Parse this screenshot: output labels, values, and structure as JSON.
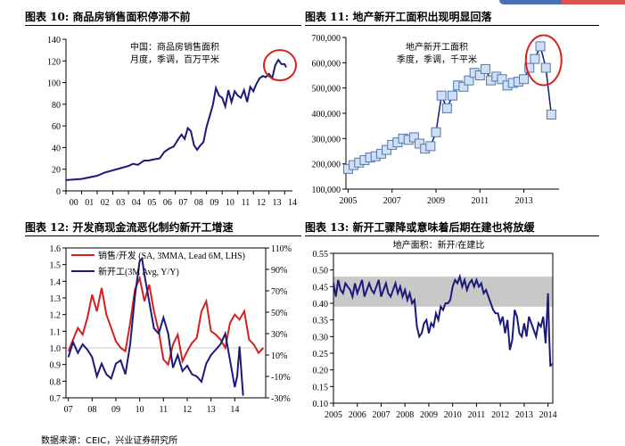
{
  "panels": [
    {
      "title": "图表 10:  商品房销售面积停滞不前"
    },
    {
      "title": "图表 11:  地产新开工面积出现明显回落"
    },
    {
      "title": "图表 12:  开发商现金流恶化制约新开工增速"
    },
    {
      "title": "图表 13:  新开工骤降或意味着后期在建也将放缓"
    }
  ],
  "source": "数据来源：CEIC，兴业证券研究所",
  "colors": {
    "navy": "#1a1a7a",
    "red": "#d62020",
    "light_blue_fill": "#cfe0f5",
    "grey_band": "#c8c8c8"
  },
  "chart_data": [
    {
      "type": "line",
      "annotation": [
        "中国：商品房销售面积",
        "月度，季调，百万平米"
      ],
      "x_ticks": [
        "00",
        "01",
        "02",
        "03",
        "04",
        "05",
        "06",
        "07",
        "08",
        "09",
        "10",
        "11",
        "12",
        "13",
        "14"
      ],
      "ylim": [
        0,
        140
      ],
      "y_ticks": [
        0,
        20,
        40,
        60,
        80,
        100,
        120,
        140
      ],
      "x": [
        0.0,
        1.0,
        2.0,
        2.5,
        3.0,
        3.5,
        4.0,
        4.3,
        4.6,
        4.9,
        5.0,
        5.3,
        5.6,
        6.0,
        6.3,
        6.6,
        6.9,
        7.2,
        7.4,
        7.6,
        7.8,
        8.0,
        8.2,
        8.4,
        8.6,
        8.8,
        9.0,
        9.2,
        9.4,
        9.6,
        9.8,
        10.0,
        10.2,
        10.4,
        10.6,
        10.8,
        11.0,
        11.2,
        11.4,
        11.6,
        11.8,
        12.0,
        12.2,
        12.4,
        12.6,
        12.8,
        13.0,
        13.2,
        13.4,
        13.6,
        13.8,
        14.0,
        14.1
      ],
      "y": [
        10,
        11,
        14,
        17,
        19,
        21,
        23,
        25,
        24,
        27,
        28,
        28,
        29,
        30,
        36,
        39,
        41,
        48,
        52,
        48,
        58,
        55,
        42,
        38,
        42,
        45,
        59,
        69,
        79,
        95,
        88,
        86,
        78,
        93,
        82,
        92,
        88,
        86,
        93,
        82,
        96,
        92,
        99,
        104,
        106,
        105,
        108,
        104,
        116,
        121,
        117,
        117,
        114
      ],
      "highlight_circle_x": 13.7
    },
    {
      "type": "line",
      "annotation": [
        "地产新开工面积",
        "季度，季调，千平米"
      ],
      "x_ticks": [
        "2005",
        "2007",
        "2009",
        "2011",
        "2013"
      ],
      "x_tick_values": [
        2005,
        2007,
        2009,
        2011,
        2013
      ],
      "ylim": [
        100000,
        700000
      ],
      "y_ticks": [
        "100,000",
        "200,000",
        "300,000",
        "400,000",
        "500,000",
        "600,000",
        "700,000"
      ],
      "y_tick_values": [
        100000,
        200000,
        300000,
        400000,
        500000,
        600000,
        700000
      ],
      "x": [
        2005.0,
        2005.25,
        2005.5,
        2005.75,
        2006.0,
        2006.25,
        2006.5,
        2006.75,
        2007.0,
        2007.25,
        2007.5,
        2007.75,
        2008.0,
        2008.25,
        2008.5,
        2008.75,
        2009.0,
        2009.25,
        2009.5,
        2009.75,
        2010.0,
        2010.25,
        2010.5,
        2010.75,
        2011.0,
        2011.25,
        2011.5,
        2011.75,
        2012.0,
        2012.25,
        2012.5,
        2012.75,
        2013.0,
        2013.25,
        2013.5,
        2013.75,
        2014.0,
        2014.25
      ],
      "y": [
        180000,
        195000,
        205000,
        215000,
        225000,
        230000,
        240000,
        255000,
        275000,
        285000,
        300000,
        295000,
        305000,
        280000,
        260000,
        270000,
        325000,
        470000,
        420000,
        470000,
        510000,
        505000,
        530000,
        560000,
        550000,
        575000,
        530000,
        545000,
        535000,
        510000,
        520000,
        525000,
        535000,
        580000,
        615000,
        665000,
        580000,
        395000
      ],
      "highlight_circle_x": 2013.9
    },
    {
      "type": "line",
      "legend": [
        "销售/开发 (SA, 3MMA, Lead 6M, LHS)",
        "新开工(3M Avg, Y/Y)"
      ],
      "x_ticks": [
        "07",
        "08",
        "09",
        "10",
        "11",
        "12",
        "13",
        "14"
      ],
      "ylim_left": [
        0.7,
        1.6
      ],
      "y_ticks_left": [
        "0.7",
        "0.8",
        "0.9",
        "1.0",
        "1.1",
        "1.2",
        "1.3",
        "1.4",
        "1.5",
        "1.6"
      ],
      "y_tick_values_left": [
        0.7,
        0.8,
        0.9,
        1.0,
        1.1,
        1.2,
        1.3,
        1.4,
        1.5,
        1.6
      ],
      "ylim_right": [
        -30,
        110
      ],
      "y_ticks_right": [
        "-30%",
        "-10%",
        "10%",
        "30%",
        "50%",
        "70%",
        "90%",
        "110%"
      ],
      "y_tick_values_right": [
        -30,
        -10,
        10,
        30,
        50,
        70,
        90,
        110
      ],
      "series": [
        {
          "name": "销售/开发 (SA, 3MMA, Lead 6M, LHS)",
          "x": [
            7.0,
            7.2,
            7.4,
            7.6,
            7.8,
            8.0,
            8.2,
            8.4,
            8.6,
            8.8,
            9.0,
            9.2,
            9.4,
            9.6,
            9.8,
            10.0,
            10.2,
            10.4,
            10.6,
            10.8,
            11.0,
            11.2,
            11.4,
            11.6,
            11.8,
            12.0,
            12.2,
            12.4,
            12.6,
            12.8,
            13.0,
            13.2,
            13.4,
            13.6,
            13.8,
            14.0,
            14.2,
            14.4,
            14.6,
            14.8,
            15.0,
            15.2
          ],
          "y": [
            0.98,
            1.05,
            1.12,
            1.08,
            1.18,
            1.32,
            1.22,
            1.36,
            1.2,
            1.12,
            1.04,
            1.0,
            0.98,
            1.15,
            1.35,
            1.42,
            1.28,
            1.38,
            1.22,
            1.1,
            0.93,
            0.9,
            1.02,
            1.08,
            0.92,
            0.98,
            1.03,
            1.06,
            1.22,
            1.28,
            1.1,
            1.08,
            1.05,
            1.0,
            1.15,
            1.2,
            1.17,
            1.22,
            1.05,
            1.02,
            0.97,
            1.0
          ]
        },
        {
          "name": "新开工(3M Avg, Y/Y)",
          "x": [
            7.0,
            7.2,
            7.4,
            7.6,
            7.8,
            8.0,
            8.2,
            8.4,
            8.6,
            8.8,
            9.0,
            9.2,
            9.4,
            9.6,
            9.8,
            10.0,
            10.1,
            10.2,
            10.4,
            10.6,
            10.8,
            11.0,
            11.2,
            11.4,
            11.6,
            11.8,
            12.0,
            12.2,
            12.4,
            12.6,
            12.8,
            13.0,
            13.2,
            13.4,
            13.6,
            13.8,
            14.0,
            14.1,
            14.2,
            14.35
          ],
          "y": [
            8,
            22,
            12,
            20,
            15,
            8,
            -10,
            2,
            -8,
            -12,
            2,
            5,
            -8,
            20,
            65,
            98,
            100,
            85,
            60,
            35,
            30,
            45,
            30,
            -2,
            10,
            -5,
            0,
            -8,
            -10,
            -15,
            2,
            10,
            15,
            20,
            30,
            5,
            -20,
            -10,
            18,
            -28
          ]
        }
      ]
    },
    {
      "type": "line",
      "annotation": "地产面积：新开/在建比",
      "x_ticks": [
        "2005",
        "2006",
        "2007",
        "2008",
        "2009",
        "2010",
        "2011",
        "2012",
        "2013",
        "2014"
      ],
      "x_tick_values": [
        2005,
        2006,
        2007,
        2008,
        2009,
        2010,
        2011,
        2012,
        2013,
        2014
      ],
      "ylim": [
        0.1,
        0.55
      ],
      "y_ticks": [
        "0.10",
        "0.15",
        "0.20",
        "0.25",
        "0.30",
        "0.35",
        "0.40",
        "0.45",
        "0.50",
        "0.55"
      ],
      "y_tick_values": [
        0.1,
        0.15,
        0.2,
        0.25,
        0.3,
        0.35,
        0.4,
        0.45,
        0.5,
        0.55
      ],
      "band": [
        0.39,
        0.48
      ],
      "x": [
        2005.0,
        2005.1,
        2005.2,
        2005.3,
        2005.4,
        2005.5,
        2005.6,
        2005.7,
        2005.8,
        2005.9,
        2006.0,
        2006.1,
        2006.2,
        2006.3,
        2006.4,
        2006.5,
        2006.6,
        2006.7,
        2006.8,
        2006.9,
        2007.0,
        2007.1,
        2007.2,
        2007.3,
        2007.4,
        2007.5,
        2007.6,
        2007.7,
        2007.8,
        2007.9,
        2008.0,
        2008.1,
        2008.2,
        2008.3,
        2008.4,
        2008.5,
        2008.6,
        2008.7,
        2008.8,
        2008.9,
        2009.0,
        2009.1,
        2009.2,
        2009.3,
        2009.4,
        2009.5,
        2009.6,
        2009.7,
        2009.8,
        2009.9,
        2010.0,
        2010.1,
        2010.2,
        2010.3,
        2010.4,
        2010.5,
        2010.6,
        2010.7,
        2010.8,
        2010.9,
        2011.0,
        2011.1,
        2011.2,
        2011.3,
        2011.4,
        2011.5,
        2011.6,
        2011.7,
        2011.8,
        2011.9,
        2012.0,
        2012.1,
        2012.2,
        2012.3,
        2012.4,
        2012.5,
        2012.6,
        2012.7,
        2012.8,
        2012.9,
        2013.0,
        2013.1,
        2013.2,
        2013.3,
        2013.4,
        2013.5,
        2013.6,
        2013.7,
        2013.8,
        2013.9,
        2014.0,
        2014.05,
        2014.1,
        2014.15
      ],
      "y": [
        0.46,
        0.42,
        0.47,
        0.44,
        0.43,
        0.46,
        0.45,
        0.44,
        0.42,
        0.46,
        0.43,
        0.45,
        0.47,
        0.42,
        0.44,
        0.46,
        0.44,
        0.43,
        0.45,
        0.47,
        0.42,
        0.44,
        0.46,
        0.43,
        0.42,
        0.44,
        0.46,
        0.43,
        0.45,
        0.42,
        0.44,
        0.41,
        0.43,
        0.4,
        0.41,
        0.33,
        0.3,
        0.31,
        0.34,
        0.35,
        0.31,
        0.34,
        0.33,
        0.37,
        0.35,
        0.39,
        0.38,
        0.4,
        0.4,
        0.41,
        0.45,
        0.47,
        0.46,
        0.48,
        0.45,
        0.47,
        0.44,
        0.46,
        0.47,
        0.45,
        0.47,
        0.45,
        0.46,
        0.43,
        0.44,
        0.42,
        0.4,
        0.38,
        0.37,
        0.37,
        0.34,
        0.36,
        0.31,
        0.35,
        0.26,
        0.29,
        0.38,
        0.36,
        0.31,
        0.3,
        0.34,
        0.3,
        0.36,
        0.34,
        0.32,
        0.3,
        0.34,
        0.33,
        0.36,
        0.28,
        0.43,
        0.3,
        0.21,
        0.22
      ]
    }
  ]
}
